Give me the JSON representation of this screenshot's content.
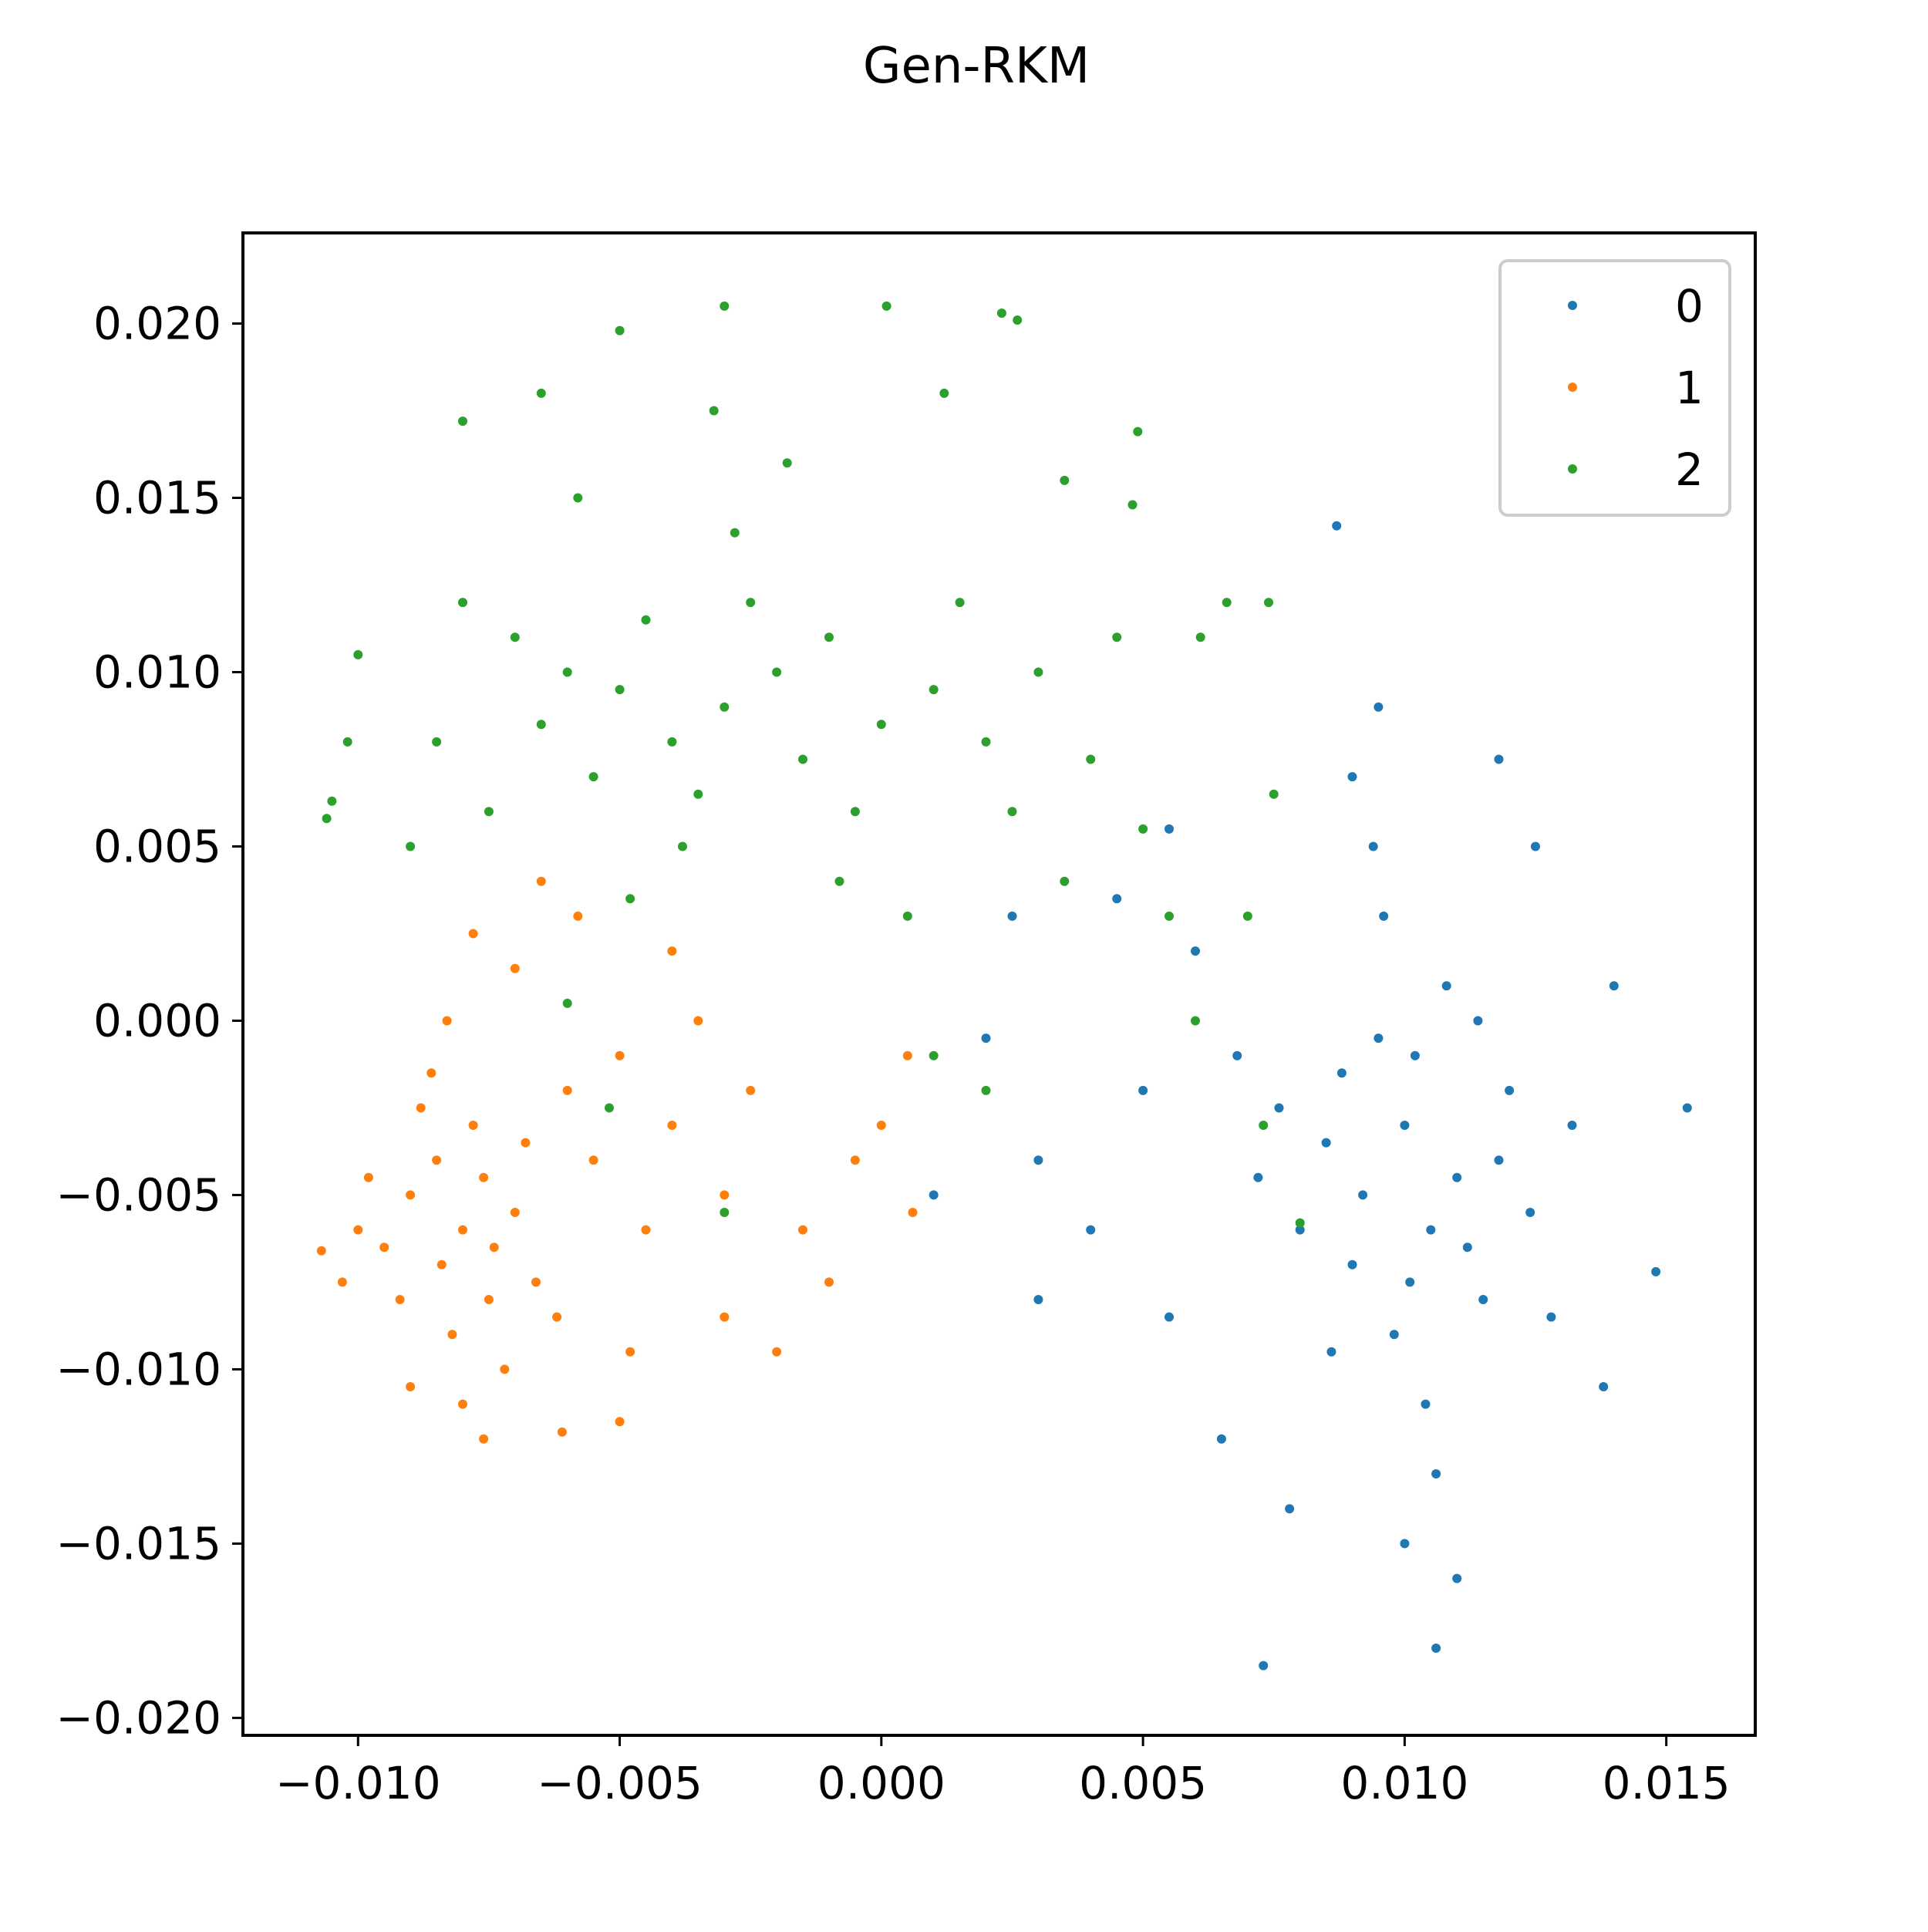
{
  "chart_data": {
    "type": "scatter",
    "title": "Gen-RKM",
    "xlabel": "",
    "ylabel": "",
    "xlim": [
      -0.0122,
      0.0167
    ],
    "ylim": [
      -0.0205,
      0.0226
    ],
    "x_ticks": [
      -0.01,
      -0.005,
      0.0,
      0.005,
      0.01,
      0.015
    ],
    "x_tick_labels": [
      "−0.010",
      "−0.005",
      "0.000",
      "0.005",
      "0.010",
      "0.015"
    ],
    "y_ticks": [
      0.02,
      0.015,
      0.01,
      0.005,
      0.0,
      -0.005,
      -0.01,
      -0.015,
      -0.02
    ],
    "y_tick_labels": [
      "0.020",
      "0.015",
      "0.010",
      "0.005",
      "0.000",
      "−0.005",
      "−0.010",
      "−0.015",
      "−0.020"
    ],
    "grid": false,
    "legend_position": "top-right",
    "series": [
      {
        "name": "0",
        "color": "#1f77b4",
        "points": [
          [
            0.01,
            -0.003
          ],
          [
            0.0105,
            -0.006
          ],
          [
            0.0095,
            -0.0005
          ],
          [
            0.011,
            -0.0045
          ],
          [
            0.009,
            -0.007
          ],
          [
            0.0102,
            -0.001
          ],
          [
            0.0115,
            -0.008
          ],
          [
            0.0085,
            -0.0035
          ],
          [
            0.0098,
            -0.009
          ],
          [
            0.0108,
            0.001
          ],
          [
            0.0092,
            -0.005
          ],
          [
            0.012,
            -0.002
          ],
          [
            0.008,
            -0.006
          ],
          [
            0.0104,
            -0.011
          ],
          [
            0.0096,
            0.003
          ],
          [
            0.0112,
            -0.0065
          ],
          [
            0.0088,
            -0.0015
          ],
          [
            0.0118,
            -0.004
          ],
          [
            0.0076,
            -0.0025
          ],
          [
            0.0101,
            -0.0075
          ],
          [
            0.0106,
            -0.013
          ],
          [
            0.0094,
            0.005
          ],
          [
            0.0124,
            -0.0055
          ],
          [
            0.0072,
            -0.0045
          ],
          [
            0.0086,
            -0.0095
          ],
          [
            0.0114,
            0.0
          ],
          [
            0.01,
            -0.015
          ],
          [
            0.009,
            0.007
          ],
          [
            0.0128,
            -0.0085
          ],
          [
            0.0068,
            -0.001
          ],
          [
            0.006,
            0.002
          ],
          [
            0.005,
            -0.002
          ],
          [
            0.004,
            -0.006
          ],
          [
            0.003,
            -0.004
          ],
          [
            0.002,
            -0.0005
          ],
          [
            0.0055,
            -0.0085
          ],
          [
            0.0045,
            0.0035
          ],
          [
            0.0065,
            -0.012
          ],
          [
            0.011,
            -0.016
          ],
          [
            0.0132,
            -0.003
          ],
          [
            0.0087,
            0.0142
          ],
          [
            0.0073,
            -0.0185
          ],
          [
            0.0106,
            -0.018
          ],
          [
            0.0154,
            -0.0025
          ],
          [
            0.0148,
            -0.0072
          ],
          [
            0.0138,
            -0.0105
          ],
          [
            0.014,
            0.001
          ],
          [
            0.0125,
            0.005
          ],
          [
            0.0118,
            0.0075
          ],
          [
            0.0095,
            0.009
          ],
          [
            0.003,
            -0.008
          ],
          [
            0.001,
            -0.005
          ],
          [
            0.0055,
            0.0055
          ],
          [
            0.0025,
            0.003
          ],
          [
            0.0078,
            -0.014
          ]
        ]
      },
      {
        "name": "1",
        "color": "#ff7f0e",
        "points": [
          [
            -0.008,
            -0.006
          ],
          [
            -0.0085,
            -0.004
          ],
          [
            -0.0075,
            -0.008
          ],
          [
            -0.009,
            -0.005
          ],
          [
            -0.0078,
            -0.003
          ],
          [
            -0.0082,
            -0.009
          ],
          [
            -0.007,
            -0.0055
          ],
          [
            -0.0095,
            -0.0065
          ],
          [
            -0.0088,
            -0.0025
          ],
          [
            -0.0072,
            -0.01
          ],
          [
            -0.0084,
            -0.007
          ],
          [
            -0.0076,
            -0.0045
          ],
          [
            -0.0092,
            -0.008
          ],
          [
            -0.0068,
            -0.0035
          ],
          [
            -0.008,
            -0.011
          ],
          [
            -0.0086,
            -0.0015
          ],
          [
            -0.0074,
            -0.0065
          ],
          [
            -0.0098,
            -0.0045
          ],
          [
            -0.0066,
            -0.0075
          ],
          [
            -0.0083,
            -0.0
          ],
          [
            -0.006,
            -0.002
          ],
          [
            -0.0055,
            -0.004
          ],
          [
            -0.005,
            -0.001
          ],
          [
            -0.0045,
            -0.006
          ],
          [
            -0.004,
            -0.003
          ],
          [
            -0.0035,
            0.0
          ],
          [
            -0.003,
            -0.005
          ],
          [
            -0.0025,
            -0.002
          ],
          [
            -0.0062,
            -0.0085
          ],
          [
            -0.0048,
            -0.0095
          ],
          [
            -0.0078,
            0.0025
          ],
          [
            -0.007,
            0.0015
          ],
          [
            -0.0058,
            0.003
          ],
          [
            -0.01,
            -0.006
          ],
          [
            -0.0103,
            -0.0075
          ],
          [
            -0.009,
            -0.0105
          ],
          [
            -0.0076,
            -0.012
          ],
          [
            -0.0061,
            -0.0118
          ],
          [
            -0.005,
            -0.0115
          ],
          [
            -0.002,
            -0.0095
          ],
          [
            -0.0015,
            -0.006
          ],
          [
            -0.0005,
            -0.004
          ],
          [
            0.0,
            -0.003
          ],
          [
            0.0005,
            -0.001
          ],
          [
            0.0006,
            -0.0055
          ],
          [
            -0.001,
            -0.0075
          ],
          [
            -0.003,
            -0.0085
          ],
          [
            -0.0107,
            -0.0066
          ],
          [
            -0.0065,
            0.004
          ],
          [
            -0.004,
            0.002
          ]
        ]
      },
      {
        "name": "2",
        "color": "#2ca02c",
        "points": [
          [
            -0.003,
            0.009
          ],
          [
            -0.002,
            0.01
          ],
          [
            -0.004,
            0.008
          ],
          [
            -0.001,
            0.011
          ],
          [
            -0.005,
            0.0095
          ],
          [
            0.0,
            0.0085
          ],
          [
            -0.0025,
            0.012
          ],
          [
            -0.0035,
            0.0065
          ],
          [
            -0.0015,
            0.0075
          ],
          [
            -0.0045,
            0.0115
          ],
          [
            0.001,
            0.0095
          ],
          [
            -0.0055,
            0.007
          ],
          [
            -0.0028,
            0.014
          ],
          [
            0.0015,
            0.012
          ],
          [
            -0.006,
            0.01
          ],
          [
            -0.0005,
            0.006
          ],
          [
            -0.0038,
            0.005
          ],
          [
            0.002,
            0.008
          ],
          [
            -0.0065,
            0.0085
          ],
          [
            -0.0018,
            0.016
          ],
          [
            0.0025,
            0.006
          ],
          [
            -0.007,
            0.011
          ],
          [
            0.003,
            0.01
          ],
          [
            -0.0048,
            0.0035
          ],
          [
            -0.0008,
            0.004
          ],
          [
            0.0035,
            0.004
          ],
          [
            -0.0075,
            0.006
          ],
          [
            0.004,
            0.0075
          ],
          [
            -0.008,
            0.012
          ],
          [
            0.0005,
            0.003
          ],
          [
            -0.0032,
            0.0175
          ],
          [
            0.0045,
            0.011
          ],
          [
            -0.0085,
            0.008
          ],
          [
            -0.0058,
            0.015
          ],
          [
            0.005,
            0.0055
          ],
          [
            0.0012,
            0.018
          ],
          [
            -0.009,
            0.005
          ],
          [
            0.0055,
            0.003
          ],
          [
            -0.003,
            0.0205
          ],
          [
            0.0001,
            0.0205
          ],
          [
            0.0023,
            0.0203
          ],
          [
            0.0026,
            0.0201
          ],
          [
            -0.005,
            0.0198
          ],
          [
            -0.0105,
            0.0063
          ],
          [
            -0.0106,
            0.0058
          ],
          [
            -0.0102,
            0.008
          ],
          [
            -0.01,
            0.0105
          ],
          [
            0.0066,
            0.012
          ],
          [
            0.0074,
            0.012
          ],
          [
            0.0061,
            0.011
          ],
          [
            0.0075,
            0.0065
          ],
          [
            0.007,
            0.003
          ],
          [
            0.006,
            0.0
          ],
          [
            0.008,
            -0.0058
          ],
          [
            0.0073,
            -0.003
          ],
          [
            0.001,
            -0.001
          ],
          [
            0.002,
            -0.002
          ],
          [
            -0.003,
            -0.0055
          ],
          [
            -0.0052,
            -0.0025
          ],
          [
            -0.006,
            0.0005
          ],
          [
            0.0049,
            0.0169
          ],
          [
            0.0048,
            0.0148
          ],
          [
            0.0035,
            0.0155
          ],
          [
            -0.008,
            0.0172
          ],
          [
            -0.0065,
            0.018
          ]
        ]
      }
    ]
  }
}
